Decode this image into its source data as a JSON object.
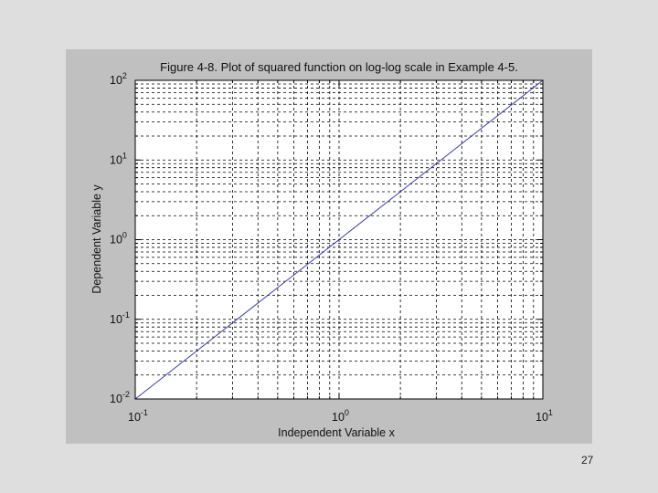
{
  "slide": {
    "number": "27"
  },
  "chart_data": {
    "type": "line",
    "title": "Figure 4-8.  Plot of squared function on log-log scale in Example 4-5.",
    "xlabel": "Independent Variable x",
    "ylabel": "Dependent Variable y",
    "xscale": "log",
    "yscale": "log",
    "xlim": [
      0.1,
      10
    ],
    "ylim": [
      0.01,
      100
    ],
    "grid": true,
    "x_ticks": [
      {
        "base": "10",
        "exp": "-1"
      },
      {
        "base": "10",
        "exp": "0"
      },
      {
        "base": "10",
        "exp": "1"
      }
    ],
    "y_ticks": [
      {
        "base": "10",
        "exp": "-2"
      },
      {
        "base": "10",
        "exp": "-1"
      },
      {
        "base": "10",
        "exp": "0"
      },
      {
        "base": "10",
        "exp": "1"
      },
      {
        "base": "10",
        "exp": "2"
      }
    ],
    "series": [
      {
        "x": [
          0.1,
          0.2,
          0.5,
          1,
          2,
          5,
          10
        ],
        "y": [
          0.01,
          0.04,
          0.25,
          1,
          4,
          25,
          100
        ],
        "color": "#3a3ab0"
      }
    ]
  }
}
